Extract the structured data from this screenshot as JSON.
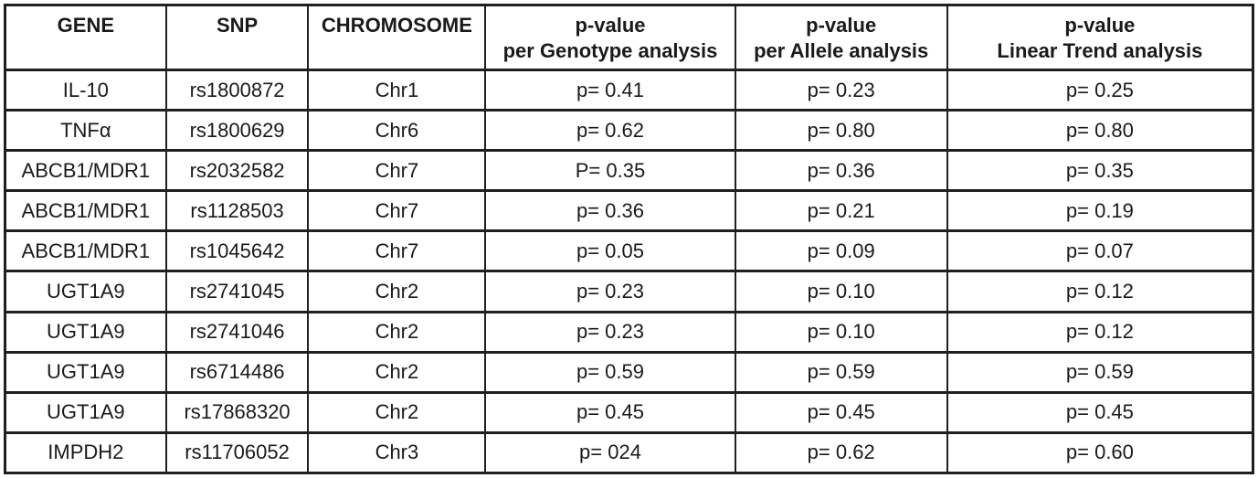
{
  "page": {
    "background_color": "#ffffff",
    "border_color": "#1f1f1f",
    "text_color": "#1a1a1a"
  },
  "table": {
    "columns": [
      {
        "key": "gene",
        "label": "GENE"
      },
      {
        "key": "snp",
        "label": "SNP"
      },
      {
        "key": "chromosome",
        "label": "CHROMOSOME"
      },
      {
        "key": "p-genotype",
        "label": "p-value\nper Genotype analysis"
      },
      {
        "key": "p-allele",
        "label": "p-value\nper Allele analysis"
      },
      {
        "key": "p-linear-trend",
        "label": "p-value\nLinear Trend analysis"
      }
    ],
    "rows": [
      [
        "IL-10",
        "rs1800872",
        "Chr1",
        "p= 0.41",
        "p= 0.23",
        "p= 0.25"
      ],
      [
        "TNFα",
        "rs1800629",
        "Chr6",
        "p= 0.62",
        "p= 0.80",
        "p= 0.80"
      ],
      [
        "ABCB1/MDR1",
        "rs2032582",
        "Chr7",
        "P= 0.35",
        "p= 0.36",
        "p= 0.35"
      ],
      [
        "ABCB1/MDR1",
        "rs1128503",
        "Chr7",
        "p= 0.36",
        "p= 0.21",
        "p= 0.19"
      ],
      [
        "ABCB1/MDR1",
        "rs1045642",
        "Chr7",
        "p= 0.05",
        "p= 0.09",
        "p= 0.07"
      ],
      [
        "UGT1A9",
        "rs2741045",
        "Chr2",
        "p= 0.23",
        "p= 0.10",
        "p= 0.12"
      ],
      [
        "UGT1A9",
        "rs2741046",
        "Chr2",
        "p= 0.23",
        "p= 0.10",
        "p= 0.12"
      ],
      [
        "UGT1A9",
        "rs6714486",
        "Chr2",
        "p= 0.59",
        "p= 0.59",
        "p= 0.59"
      ],
      [
        "UGT1A9",
        "rs17868320",
        "Chr2",
        "p= 0.45",
        "p= 0.45",
        "p= 0.45"
      ],
      [
        "IMPDH2",
        "rs11706052",
        "Chr3",
        "p= 024",
        "p= 0.62",
        "p= 0.60"
      ]
    ]
  }
}
